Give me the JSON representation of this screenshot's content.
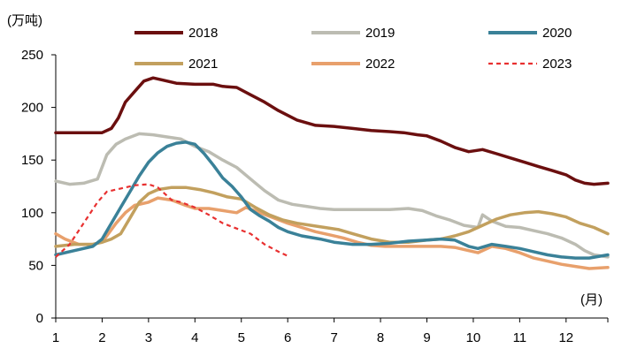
{
  "chart_data": {
    "type": "line",
    "unit_label": "(万吨)",
    "x_unit_label": "(月)",
    "ylim": [
      0,
      250
    ],
    "xlim": [
      1,
      12.9
    ],
    "y_ticks": [
      "0",
      "50",
      "100",
      "150",
      "200",
      "250"
    ],
    "x_ticks": [
      "1",
      "2",
      "3",
      "4",
      "5",
      "6",
      "7",
      "8",
      "9",
      "10",
      "11",
      "12"
    ],
    "grid": false,
    "legend_position": "top",
    "series": [
      {
        "name": "2018",
        "color": "#6b0f0f",
        "dashed": false,
        "points": [
          [
            1,
            176
          ],
          [
            1.3,
            176
          ],
          [
            1.6,
            176
          ],
          [
            2.0,
            176
          ],
          [
            2.2,
            180
          ],
          [
            2.35,
            190
          ],
          [
            2.5,
            205
          ],
          [
            2.7,
            215
          ],
          [
            2.9,
            225
          ],
          [
            3.1,
            228
          ],
          [
            3.3,
            226
          ],
          [
            3.6,
            223
          ],
          [
            4.0,
            222
          ],
          [
            4.2,
            222
          ],
          [
            4.4,
            222
          ],
          [
            4.6,
            220
          ],
          [
            4.9,
            219
          ],
          [
            5.2,
            212
          ],
          [
            5.5,
            205
          ],
          [
            5.8,
            197
          ],
          [
            6.2,
            188
          ],
          [
            6.6,
            183
          ],
          [
            7.0,
            182
          ],
          [
            7.4,
            180
          ],
          [
            7.8,
            178
          ],
          [
            8.2,
            177
          ],
          [
            8.5,
            176
          ],
          [
            8.8,
            174
          ],
          [
            9.0,
            173
          ],
          [
            9.3,
            168
          ],
          [
            9.6,
            162
          ],
          [
            9.9,
            158
          ],
          [
            10.2,
            160
          ],
          [
            10.5,
            156
          ],
          [
            10.8,
            152
          ],
          [
            11.1,
            148
          ],
          [
            11.4,
            144
          ],
          [
            11.7,
            140
          ],
          [
            12.0,
            136
          ],
          [
            12.2,
            131
          ],
          [
            12.4,
            128
          ],
          [
            12.6,
            127
          ],
          [
            12.9,
            128
          ]
        ]
      },
      {
        "name": "2019",
        "color": "#bcbcb2",
        "dashed": false,
        "points": [
          [
            1,
            130
          ],
          [
            1.3,
            127
          ],
          [
            1.6,
            128
          ],
          [
            1.9,
            132
          ],
          [
            2.1,
            155
          ],
          [
            2.3,
            165
          ],
          [
            2.5,
            170
          ],
          [
            2.8,
            175
          ],
          [
            3.1,
            174
          ],
          [
            3.4,
            172
          ],
          [
            3.7,
            170
          ],
          [
            4.0,
            163
          ],
          [
            4.3,
            158
          ],
          [
            4.6,
            150
          ],
          [
            4.9,
            143
          ],
          [
            5.2,
            132
          ],
          [
            5.5,
            121
          ],
          [
            5.8,
            112
          ],
          [
            6.1,
            108
          ],
          [
            6.4,
            106
          ],
          [
            6.7,
            104
          ],
          [
            7.0,
            103
          ],
          [
            7.4,
            103
          ],
          [
            7.8,
            103
          ],
          [
            8.2,
            103
          ],
          [
            8.6,
            104
          ],
          [
            8.9,
            102
          ],
          [
            9.2,
            97
          ],
          [
            9.5,
            93
          ],
          [
            9.8,
            88
          ],
          [
            10.1,
            86
          ],
          [
            10.2,
            98
          ],
          [
            10.4,
            92
          ],
          [
            10.7,
            87
          ],
          [
            11.0,
            86
          ],
          [
            11.3,
            83
          ],
          [
            11.6,
            80
          ],
          [
            11.9,
            76
          ],
          [
            12.2,
            70
          ],
          [
            12.4,
            64
          ],
          [
            12.6,
            60
          ],
          [
            12.9,
            58
          ]
        ]
      },
      {
        "name": "2020",
        "color": "#3a8198",
        "dashed": false,
        "points": [
          [
            1,
            60
          ],
          [
            1.4,
            64
          ],
          [
            1.8,
            68
          ],
          [
            2.0,
            75
          ],
          [
            2.2,
            90
          ],
          [
            2.4,
            105
          ],
          [
            2.6,
            120
          ],
          [
            2.8,
            135
          ],
          [
            3.0,
            148
          ],
          [
            3.2,
            157
          ],
          [
            3.4,
            163
          ],
          [
            3.6,
            166
          ],
          [
            3.8,
            167
          ],
          [
            4.0,
            165
          ],
          [
            4.2,
            156
          ],
          [
            4.4,
            145
          ],
          [
            4.6,
            133
          ],
          [
            4.8,
            125
          ],
          [
            5.0,
            115
          ],
          [
            5.2,
            103
          ],
          [
            5.4,
            97
          ],
          [
            5.6,
            92
          ],
          [
            5.8,
            86
          ],
          [
            6.0,
            82
          ],
          [
            6.3,
            78
          ],
          [
            6.7,
            75
          ],
          [
            7.0,
            72
          ],
          [
            7.4,
            70
          ],
          [
            7.8,
            70
          ],
          [
            8.2,
            71
          ],
          [
            8.6,
            73
          ],
          [
            9.0,
            74
          ],
          [
            9.3,
            75
          ],
          [
            9.6,
            74
          ],
          [
            9.9,
            68
          ],
          [
            10.1,
            66
          ],
          [
            10.4,
            70
          ],
          [
            10.7,
            68
          ],
          [
            11.0,
            66
          ],
          [
            11.3,
            63
          ],
          [
            11.6,
            60
          ],
          [
            11.9,
            58
          ],
          [
            12.2,
            57
          ],
          [
            12.5,
            57
          ],
          [
            12.9,
            60
          ]
        ]
      },
      {
        "name": "2021",
        "color": "#c2a05e",
        "dashed": false,
        "points": [
          [
            1,
            68
          ],
          [
            1.4,
            70
          ],
          [
            1.8,
            70
          ],
          [
            2.0,
            72
          ],
          [
            2.2,
            75
          ],
          [
            2.4,
            80
          ],
          [
            2.6,
            95
          ],
          [
            2.8,
            110
          ],
          [
            3.0,
            118
          ],
          [
            3.2,
            122
          ],
          [
            3.5,
            124
          ],
          [
            3.8,
            124
          ],
          [
            4.1,
            122
          ],
          [
            4.4,
            119
          ],
          [
            4.7,
            115
          ],
          [
            5.0,
            113
          ],
          [
            5.3,
            105
          ],
          [
            5.6,
            98
          ],
          [
            5.9,
            93
          ],
          [
            6.2,
            90
          ],
          [
            6.5,
            88
          ],
          [
            6.8,
            86
          ],
          [
            7.1,
            84
          ],
          [
            7.4,
            80
          ],
          [
            7.8,
            75
          ],
          [
            8.2,
            72
          ],
          [
            8.6,
            72
          ],
          [
            9.0,
            74
          ],
          [
            9.3,
            75
          ],
          [
            9.6,
            78
          ],
          [
            9.9,
            82
          ],
          [
            10.2,
            88
          ],
          [
            10.5,
            94
          ],
          [
            10.8,
            98
          ],
          [
            11.1,
            100
          ],
          [
            11.4,
            101
          ],
          [
            11.7,
            99
          ],
          [
            12.0,
            96
          ],
          [
            12.3,
            90
          ],
          [
            12.6,
            86
          ],
          [
            12.9,
            80
          ]
        ]
      },
      {
        "name": "2022",
        "color": "#e8a06c",
        "dashed": false,
        "points": [
          [
            1,
            80
          ],
          [
            1.2,
            75
          ],
          [
            1.5,
            70
          ],
          [
            1.8,
            70
          ],
          [
            2.0,
            72
          ],
          [
            2.3,
            90
          ],
          [
            2.5,
            100
          ],
          [
            2.7,
            107
          ],
          [
            3.0,
            110
          ],
          [
            3.2,
            114
          ],
          [
            3.5,
            112
          ],
          [
            3.8,
            107
          ],
          [
            4.0,
            104
          ],
          [
            4.3,
            104
          ],
          [
            4.6,
            102
          ],
          [
            4.9,
            100
          ],
          [
            5.1,
            105
          ],
          [
            5.4,
            100
          ],
          [
            5.7,
            95
          ],
          [
            6.0,
            90
          ],
          [
            6.3,
            86
          ],
          [
            6.6,
            82
          ],
          [
            6.9,
            79
          ],
          [
            7.2,
            76
          ],
          [
            7.5,
            72
          ],
          [
            7.8,
            69
          ],
          [
            8.1,
            68
          ],
          [
            8.4,
            68
          ],
          [
            8.7,
            68
          ],
          [
            9.0,
            68
          ],
          [
            9.3,
            68
          ],
          [
            9.6,
            67
          ],
          [
            9.9,
            64
          ],
          [
            10.1,
            62
          ],
          [
            10.4,
            68
          ],
          [
            10.7,
            66
          ],
          [
            11.0,
            62
          ],
          [
            11.3,
            57
          ],
          [
            11.6,
            54
          ],
          [
            11.9,
            51
          ],
          [
            12.2,
            49
          ],
          [
            12.5,
            47
          ],
          [
            12.9,
            48
          ]
        ]
      },
      {
        "name": "2023",
        "color": "#e83030",
        "dashed": true,
        "points": [
          [
            1,
            58
          ],
          [
            1.3,
            70
          ],
          [
            1.6,
            90
          ],
          [
            1.9,
            110
          ],
          [
            2.1,
            120
          ],
          [
            2.4,
            123
          ],
          [
            2.7,
            126
          ],
          [
            3.0,
            127
          ],
          [
            3.2,
            124
          ],
          [
            3.5,
            112
          ],
          [
            3.7,
            110
          ],
          [
            4.0,
            105
          ],
          [
            4.3,
            98
          ],
          [
            4.6,
            90
          ],
          [
            4.9,
            85
          ],
          [
            5.2,
            80
          ],
          [
            5.5,
            70
          ],
          [
            5.8,
            63
          ],
          [
            6.0,
            59
          ]
        ]
      }
    ]
  }
}
